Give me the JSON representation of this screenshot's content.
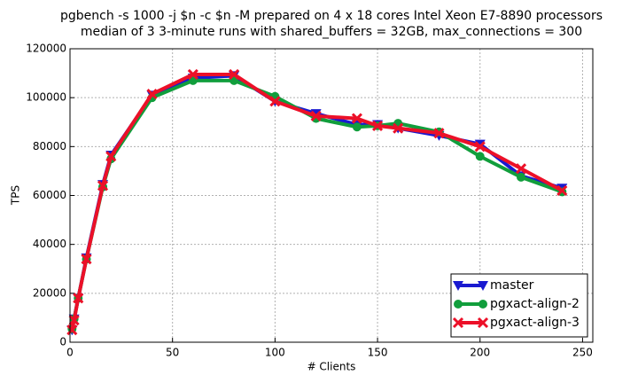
{
  "chart_data": {
    "type": "line",
    "title": "pgbench -s 1000 -j $n -c $n -M prepared on 4 x 18 cores Intel Xeon E7-8890 processors",
    "subtitle": "median of 3 3-minute runs with shared_buffers = 32GB, max_connections = 300",
    "x_label": "# Clients",
    "y_label": "TPS",
    "x": [
      1,
      2,
      4,
      8,
      16,
      20,
      40,
      60,
      80,
      100,
      120,
      140,
      150,
      160,
      180,
      200,
      220,
      240
    ],
    "series": [
      {
        "name": "master",
        "color": "#1a1ad0",
        "marker": "triangle-down",
        "values": [
          5000,
          9500,
          18000,
          34500,
          64500,
          76500,
          101000,
          108000,
          109000,
          98500,
          93500,
          89000,
          89000,
          87500,
          84500,
          81000,
          68000,
          63000
        ]
      },
      {
        "name": "pgxact-align-2",
        "color": "#119e3c",
        "marker": "circle",
        "values": [
          5500,
          9500,
          18000,
          34000,
          63500,
          75000,
          100000,
          107000,
          107000,
          100500,
          91500,
          88000,
          88500,
          89500,
          86000,
          76000,
          67500,
          61500
        ]
      },
      {
        "name": "pgxact-align-3",
        "color": "#ec1028",
        "marker": "x",
        "values": [
          5000,
          9000,
          18000,
          34000,
          64000,
          76000,
          101500,
          109500,
          109500,
          98500,
          92500,
          91500,
          88500,
          87500,
          85500,
          80000,
          71000,
          62000
        ]
      }
    ],
    "xlim": [
      0,
      255
    ],
    "ylim": [
      0,
      120000
    ],
    "xticks": [
      0,
      50,
      100,
      150,
      200,
      250
    ],
    "yticks": [
      0,
      20000,
      40000,
      60000,
      80000,
      100000,
      120000
    ],
    "grid": true,
    "legend": "lower right"
  }
}
